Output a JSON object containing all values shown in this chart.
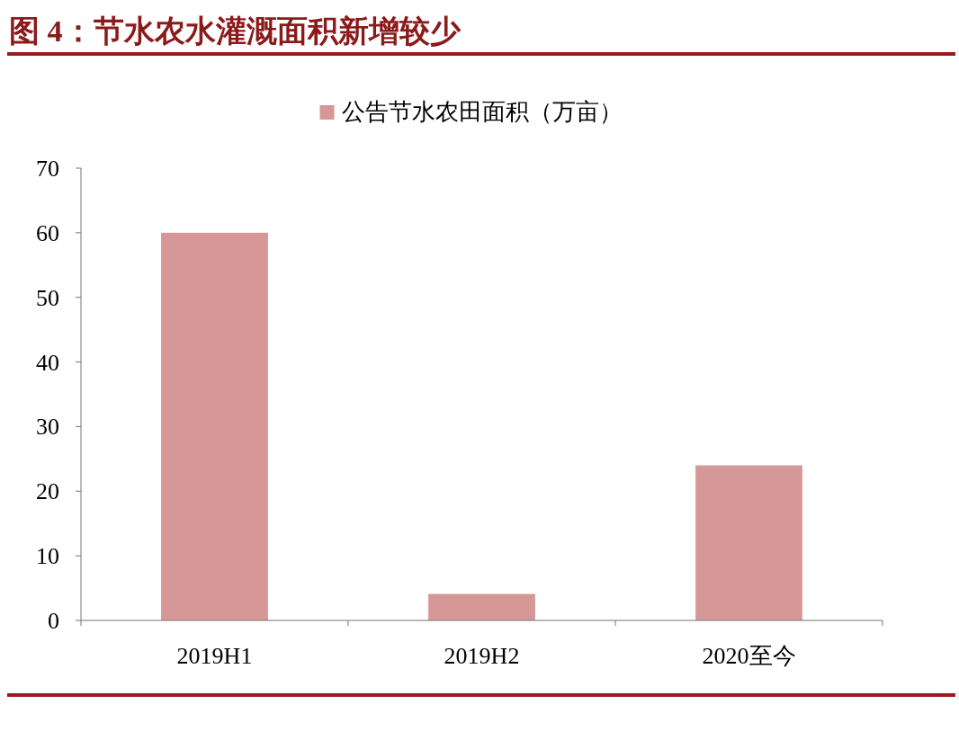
{
  "chart_data": {
    "type": "bar",
    "title": "图 4：节水农水灌溉面积新增较少",
    "categories": [
      "2019H1",
      "2019H2",
      "2020至今"
    ],
    "series": [
      {
        "name": "公告节水农田面积（万亩）",
        "color": "#d69896",
        "values": [
          60,
          4.1,
          24
        ]
      }
    ],
    "ylim": [
      0,
      70
    ],
    "yticks": [
      0,
      10,
      20,
      30,
      40,
      50,
      60,
      70
    ],
    "legend": "top"
  }
}
